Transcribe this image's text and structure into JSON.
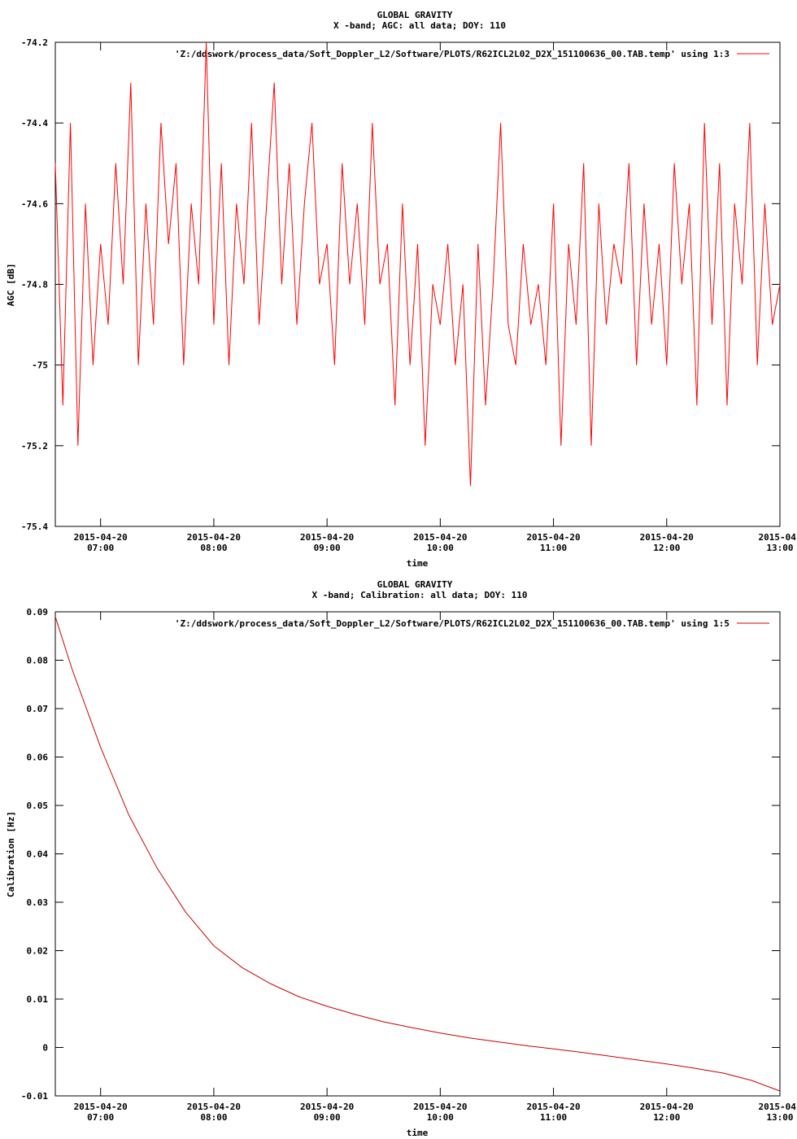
{
  "chart_data": [
    {
      "type": "line",
      "title": "GLOBAL GRAVITY",
      "subtitle": "X -band; AGC: all data; DOY: 110",
      "xlabel": "time",
      "ylabel": "AGC [dB]",
      "ylim": [
        -75.4,
        -74.2
      ],
      "yticks": [
        "-74.2",
        "-74.4",
        "-74.6",
        "-74.8",
        "-75",
        "-75.2",
        "-75.4"
      ],
      "yticks_values": [
        -74.2,
        -74.4,
        -74.6,
        -74.8,
        -75.0,
        -75.2,
        -75.4
      ],
      "xlim": [
        "2015-04-20 06:36",
        "2015-04-20 13:00"
      ],
      "xticks": [
        {
          "date": "2015-04-20",
          "time": "07:00"
        },
        {
          "date": "2015-04-20",
          "time": "08:00"
        },
        {
          "date": "2015-04-20",
          "time": "09:00"
        },
        {
          "date": "2015-04-20",
          "time": "10:00"
        },
        {
          "date": "2015-04-20",
          "time": "11:00"
        },
        {
          "date": "2015-04-20",
          "time": "12:00"
        },
        {
          "date": "2015-04-",
          "time": "13:00"
        }
      ],
      "series": [
        {
          "name": "'Z:/ddswork/process_data/Soft_Doppler_L2/Software/PLOTS/R62ICL2L02_D2X_151100636_00.TAB.temp' using 1:3",
          "color": "#ff0000",
          "x": [
            "06:36",
            "06:40",
            "06:44",
            "06:48",
            "06:52",
            "06:56",
            "07:00",
            "07:04",
            "07:08",
            "07:12",
            "07:16",
            "07:20",
            "07:24",
            "07:28",
            "07:32",
            "07:36",
            "07:40",
            "07:44",
            "07:48",
            "07:52",
            "07:56",
            "08:00",
            "08:04",
            "08:08",
            "08:12",
            "08:16",
            "08:20",
            "08:24",
            "08:28",
            "08:32",
            "08:36",
            "08:40",
            "08:44",
            "08:48",
            "08:52",
            "08:56",
            "09:00",
            "09:04",
            "09:08",
            "09:12",
            "09:16",
            "09:20",
            "09:24",
            "09:28",
            "09:32",
            "09:36",
            "09:40",
            "09:44",
            "09:48",
            "09:52",
            "09:56",
            "10:00",
            "10:04",
            "10:08",
            "10:12",
            "10:16",
            "10:20",
            "10:24",
            "10:28",
            "10:32",
            "10:36",
            "10:40",
            "10:44",
            "10:48",
            "10:52",
            "10:56",
            "11:00",
            "11:04",
            "11:08",
            "11:12",
            "11:16",
            "11:20",
            "11:24",
            "11:28",
            "11:32",
            "11:36",
            "11:40",
            "11:44",
            "11:48",
            "11:52",
            "11:56",
            "12:00",
            "12:04",
            "12:08",
            "12:12",
            "12:16",
            "12:20",
            "12:24",
            "12:28",
            "12:32",
            "12:36",
            "12:40",
            "12:44",
            "12:48",
            "12:52",
            "12:56",
            "13:00"
          ],
          "y": [
            -74.5,
            -75.1,
            -74.4,
            -75.2,
            -74.6,
            -75.0,
            -74.7,
            -74.9,
            -74.5,
            -74.8,
            -74.3,
            -75.0,
            -74.6,
            -74.9,
            -74.4,
            -74.7,
            -74.5,
            -75.0,
            -74.6,
            -74.8,
            -74.2,
            -74.9,
            -74.5,
            -75.0,
            -74.6,
            -74.8,
            -74.4,
            -74.9,
            -74.6,
            -74.3,
            -74.8,
            -74.5,
            -74.9,
            -74.6,
            -74.4,
            -74.8,
            -74.7,
            -75.0,
            -74.5,
            -74.8,
            -74.6,
            -74.9,
            -74.4,
            -74.8,
            -74.7,
            -75.1,
            -74.6,
            -75.0,
            -74.7,
            -75.2,
            -74.8,
            -74.9,
            -74.7,
            -75.0,
            -74.8,
            -75.3,
            -74.7,
            -75.1,
            -74.8,
            -74.4,
            -74.9,
            -75.0,
            -74.7,
            -74.9,
            -74.8,
            -75.0,
            -74.6,
            -75.2,
            -74.7,
            -74.9,
            -74.5,
            -75.2,
            -74.6,
            -74.9,
            -74.7,
            -74.8,
            -74.5,
            -75.0,
            -74.6,
            -74.9,
            -74.7,
            -75.0,
            -74.5,
            -74.8,
            -74.6,
            -75.1,
            -74.4,
            -74.9,
            -74.5,
            -75.1,
            -74.6,
            -74.8,
            -74.4,
            -75.0,
            -74.6,
            -74.9,
            -74.8
          ]
        }
      ]
    },
    {
      "type": "line",
      "title": "GLOBAL GRAVITY",
      "subtitle": "X -band; Calibration: all data; DOY: 110",
      "xlabel": "time",
      "ylabel": "Calibration [Hz]",
      "ylim": [
        -0.01,
        0.09
      ],
      "yticks": [
        "0.09",
        "0.08",
        "0.07",
        "0.06",
        "0.05",
        "0.04",
        "0.03",
        "0.02",
        "0.01",
        "0",
        "-0.01"
      ],
      "yticks_values": [
        0.09,
        0.08,
        0.07,
        0.06,
        0.05,
        0.04,
        0.03,
        0.02,
        0.01,
        0.0,
        -0.01
      ],
      "xlim": [
        "2015-04-20 06:36",
        "2015-04-20 13:00"
      ],
      "xticks": [
        {
          "date": "2015-04-20",
          "time": "07:00"
        },
        {
          "date": "2015-04-20",
          "time": "08:00"
        },
        {
          "date": "2015-04-20",
          "time": "09:00"
        },
        {
          "date": "2015-04-20",
          "time": "10:00"
        },
        {
          "date": "2015-04-20",
          "time": "11:00"
        },
        {
          "date": "2015-04-20",
          "time": "12:00"
        },
        {
          "date": "2015-04-",
          "time": "13:00"
        }
      ],
      "series": [
        {
          "name": "'Z:/ddswork/process_data/Soft_Doppler_L2/Software/PLOTS/R62ICL2L02_D2X_151100636_00.TAB.temp' using 1:5",
          "color": "#cc0000",
          "x": [
            "06:36",
            "06:45",
            "07:00",
            "07:15",
            "07:30",
            "07:45",
            "08:00",
            "08:15",
            "08:30",
            "08:45",
            "09:00",
            "09:15",
            "09:30",
            "09:45",
            "10:00",
            "10:15",
            "10:30",
            "10:45",
            "11:00",
            "11:15",
            "11:30",
            "11:45",
            "12:00",
            "12:15",
            "12:30",
            "12:45",
            "13:00"
          ],
          "y": [
            0.089,
            0.078,
            0.062,
            0.048,
            0.037,
            0.028,
            0.021,
            0.0165,
            0.0132,
            0.0105,
            0.0085,
            0.0068,
            0.0053,
            0.0041,
            0.003,
            0.002,
            0.0012,
            0.0004,
            -0.0003,
            -0.001,
            -0.0018,
            -0.0026,
            -0.0034,
            -0.0043,
            -0.0053,
            -0.0068,
            -0.009
          ]
        }
      ]
    }
  ]
}
